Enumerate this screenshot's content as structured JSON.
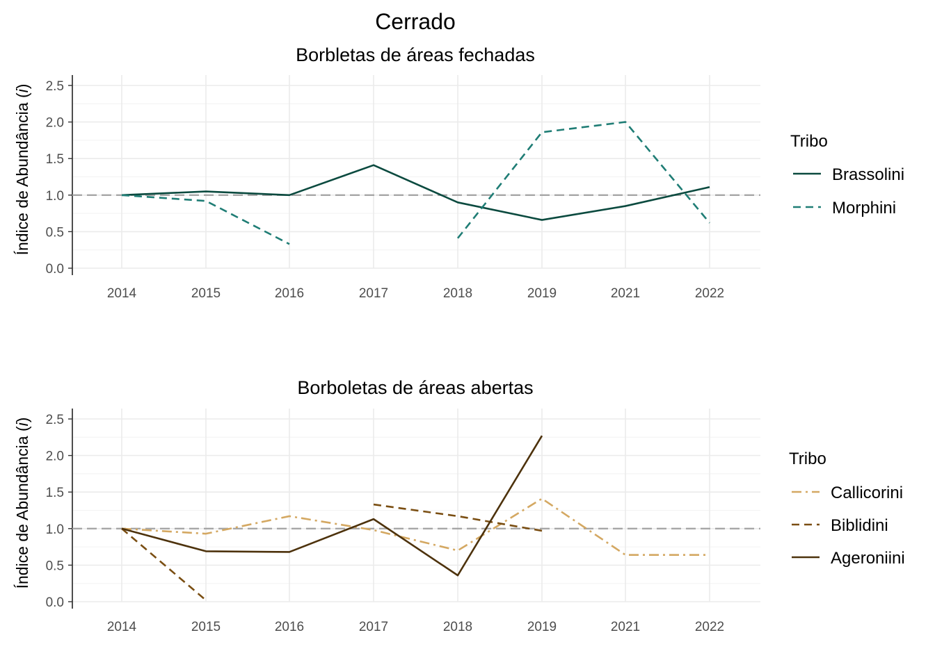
{
  "figure_title": "Cerrado",
  "chart_data": [
    {
      "type": "line",
      "title": "Borbletas de áreas fechadas",
      "ylabel_prefix": "Índice de Abundância (",
      "ylabel_italic": "i",
      "ylabel_suffix": ")",
      "categories": [
        "2014",
        "2015",
        "2016",
        "2017",
        "2018",
        "2019",
        "2021",
        "2022"
      ],
      "yticks": [
        "0.0",
        "0.5",
        "1.0",
        "1.5",
        "2.0",
        "2.5"
      ],
      "ylim": [
        0,
        2.5
      ],
      "reference_line": 1.0,
      "legend_title": "Tribo",
      "legend_position": "right",
      "grid": true,
      "series": [
        {
          "name": "Brassolini",
          "color": "#0b4a3f",
          "dash": "solid",
          "values": [
            1.0,
            1.05,
            1.0,
            1.41,
            0.9,
            0.66,
            0.85,
            1.11
          ]
        },
        {
          "name": "Morphini",
          "color": "#1f7d75",
          "dash": "dashed",
          "values": [
            1.0,
            0.92,
            0.33,
            null,
            0.41,
            1.86,
            2.0,
            0.62
          ]
        }
      ]
    },
    {
      "type": "line",
      "title": "Borboletas de áreas abertas",
      "ylabel_prefix": "Índice de Abundância (",
      "ylabel_italic": "i",
      "ylabel_suffix": ")",
      "categories": [
        "2014",
        "2015",
        "2016",
        "2017",
        "2018",
        "2019",
        "2021",
        "2022"
      ],
      "yticks": [
        "0.0",
        "0.5",
        "1.0",
        "1.5",
        "2.0",
        "2.5"
      ],
      "ylim": [
        0,
        2.5
      ],
      "reference_line": 1.0,
      "legend_title": "Tribo",
      "legend_position": "right",
      "grid": true,
      "series": [
        {
          "name": "Callicorini",
          "color": "#d4a862",
          "dash": "dashdot",
          "values": [
            1.0,
            0.93,
            1.17,
            0.98,
            0.7,
            1.41,
            0.64,
            0.64
          ]
        },
        {
          "name": "Biblidini",
          "color": "#7a4e12",
          "dash": "dashed",
          "values": [
            1.0,
            0.02,
            null,
            1.33,
            1.17,
            0.97,
            null,
            null
          ]
        },
        {
          "name": "Ageroniini",
          "color": "#4d320c",
          "dash": "solid",
          "values": [
            1.0,
            0.69,
            0.68,
            1.13,
            0.36,
            2.27,
            null,
            null
          ]
        }
      ]
    }
  ]
}
